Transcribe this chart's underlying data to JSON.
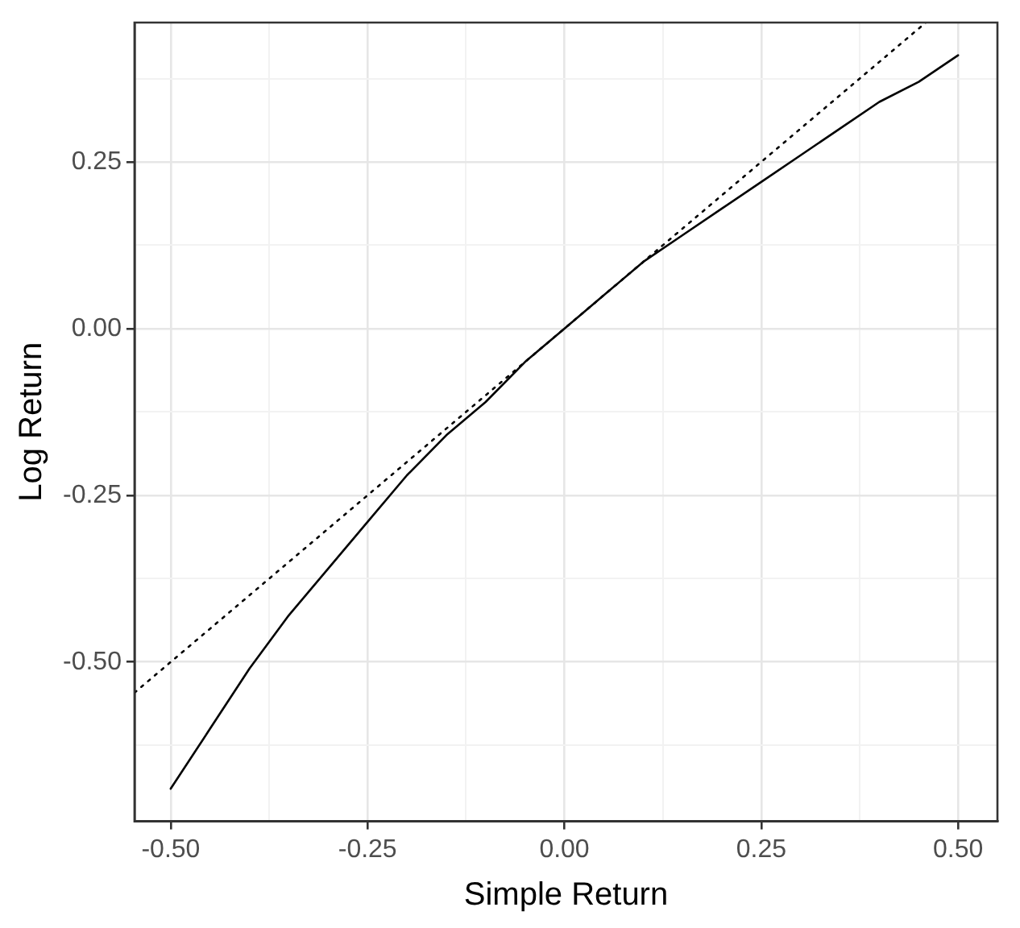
{
  "chart_data": {
    "type": "line",
    "xlabel": "Simple Return",
    "ylabel": "Log Return",
    "xlim": [
      -0.546,
      0.55
    ],
    "ylim": [
      -0.739,
      0.459
    ],
    "xticks": [
      {
        "value": -0.5,
        "label": "-0.50"
      },
      {
        "value": -0.375,
        "label": null
      },
      {
        "value": -0.25,
        "label": "-0.25"
      },
      {
        "value": -0.125,
        "label": null
      },
      {
        "value": 0,
        "label": "0.00"
      },
      {
        "value": 0.125,
        "label": null
      },
      {
        "value": 0.25,
        "label": "0.25"
      },
      {
        "value": 0.375,
        "label": null
      },
      {
        "value": 0.5,
        "label": "0.50"
      }
    ],
    "yticks": [
      {
        "value": -0.625,
        "label": null
      },
      {
        "value": -0.5,
        "label": "-0.50"
      },
      {
        "value": -0.375,
        "label": null
      },
      {
        "value": -0.25,
        "label": "-0.25"
      },
      {
        "value": -0.125,
        "label": null
      },
      {
        "value": 0,
        "label": "0.00"
      },
      {
        "value": 0.125,
        "label": null
      },
      {
        "value": 0.25,
        "label": "0.25"
      },
      {
        "value": 0.375,
        "label": null
      }
    ],
    "grid": true,
    "legend": false,
    "marker": "none",
    "series": [
      {
        "color": "#000000",
        "line_style": "solid",
        "x": [
          -0.5,
          -0.45,
          -0.4,
          -0.35,
          -0.3,
          -0.25,
          -0.2,
          -0.15,
          -0.1,
          -0.05,
          0,
          0.05,
          0.1,
          0.15,
          0.2,
          0.25,
          0.3,
          0.35,
          0.4,
          0.45,
          0.5
        ],
        "values": [
          -0.69,
          -0.6,
          -0.51,
          -0.43,
          -0.36,
          -0.29,
          -0.22,
          -0.16,
          -0.11,
          -0.05,
          0,
          0.05,
          0.1,
          0.14,
          0.18,
          0.22,
          0.26,
          0.3,
          0.34,
          0.37,
          0.41
        ]
      },
      {
        "color": "#000000",
        "line_style": "dotted",
        "x": [
          -0.546,
          0.459
        ],
        "values": [
          -0.546,
          0.459
        ]
      }
    ]
  }
}
